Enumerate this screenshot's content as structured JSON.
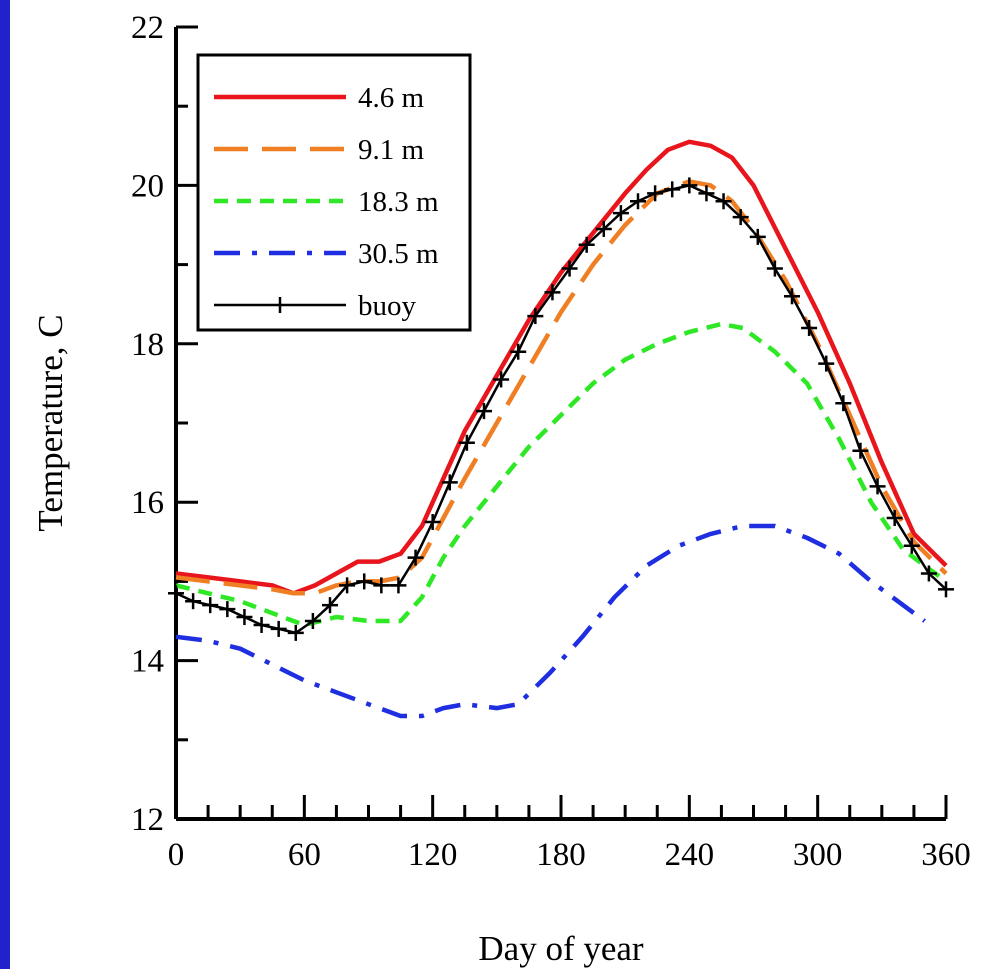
{
  "colors": {
    "background": "#2222cc",
    "plot_area": "#ffffff"
  },
  "chart_data": {
    "type": "line",
    "title": "",
    "xlabel": "Day of year",
    "ylabel": "Temperature, C",
    "xlim": [
      0,
      360
    ],
    "ylim": [
      12,
      22
    ],
    "x_ticks": [
      0,
      60,
      120,
      180,
      240,
      300,
      360
    ],
    "y_ticks": [
      12,
      14,
      16,
      18,
      20,
      22
    ],
    "grid": false,
    "legend_position": "top-left",
    "series": [
      {
        "name": "4.6 m",
        "color": "#e8151c",
        "style": "solid",
        "x": [
          0,
          15,
          30,
          45,
          55,
          65,
          75,
          85,
          95,
          105,
          115,
          125,
          135,
          150,
          165,
          180,
          195,
          210,
          220,
          230,
          240,
          250,
          260,
          270,
          285,
          300,
          315,
          330,
          345,
          360
        ],
        "y": [
          15.1,
          15.05,
          15.0,
          14.95,
          14.85,
          14.95,
          15.1,
          15.25,
          15.25,
          15.35,
          15.7,
          16.3,
          16.9,
          17.6,
          18.3,
          18.9,
          19.4,
          19.9,
          20.2,
          20.45,
          20.55,
          20.5,
          20.35,
          20.0,
          19.2,
          18.4,
          17.5,
          16.5,
          15.6,
          15.2
        ]
      },
      {
        "name": "9.1 m",
        "color": "#f07e22",
        "style": "long-dash",
        "x": [
          0,
          15,
          30,
          45,
          55,
          65,
          75,
          85,
          95,
          105,
          115,
          125,
          135,
          150,
          165,
          180,
          195,
          210,
          225,
          240,
          250,
          260,
          270,
          285,
          300,
          315,
          330,
          345,
          360
        ],
        "y": [
          15.05,
          15.0,
          14.95,
          14.9,
          14.85,
          14.85,
          14.95,
          15.0,
          15.0,
          15.05,
          15.3,
          15.8,
          16.3,
          17.0,
          17.7,
          18.4,
          19.0,
          19.5,
          19.9,
          20.05,
          20.0,
          19.8,
          19.45,
          18.8,
          18.0,
          17.1,
          16.2,
          15.5,
          15.1
        ]
      },
      {
        "name": "18.3 m",
        "color": "#2ee826",
        "style": "short-dash",
        "x": [
          0,
          15,
          30,
          45,
          60,
          75,
          90,
          105,
          115,
          125,
          135,
          150,
          165,
          180,
          195,
          210,
          225,
          240,
          255,
          265,
          280,
          295,
          310,
          325,
          340,
          360
        ],
        "y": [
          14.95,
          14.85,
          14.75,
          14.6,
          14.45,
          14.55,
          14.5,
          14.5,
          14.8,
          15.3,
          15.7,
          16.2,
          16.7,
          17.1,
          17.5,
          17.8,
          18.0,
          18.15,
          18.25,
          18.2,
          17.9,
          17.5,
          16.8,
          16.0,
          15.4,
          15.0
        ]
      },
      {
        "name": "30.5 m",
        "color": "#1e2ee0",
        "style": "dash-dot",
        "x": [
          0,
          15,
          30,
          45,
          60,
          75,
          90,
          105,
          115,
          125,
          135,
          150,
          160,
          175,
          190,
          205,
          220,
          235,
          250,
          265,
          280,
          295,
          310,
          325,
          340,
          350
        ],
        "y": [
          14.3,
          14.25,
          14.15,
          13.95,
          13.75,
          13.6,
          13.45,
          13.3,
          13.3,
          13.4,
          13.45,
          13.4,
          13.45,
          13.85,
          14.3,
          14.8,
          15.2,
          15.45,
          15.6,
          15.7,
          15.7,
          15.55,
          15.35,
          15.0,
          14.7,
          14.5
        ]
      },
      {
        "name": "buoy",
        "color": "#000000",
        "style": "solid-cross",
        "x": [
          0,
          8,
          16,
          24,
          32,
          40,
          48,
          56,
          64,
          72,
          80,
          88,
          96,
          104,
          112,
          120,
          128,
          136,
          144,
          152,
          160,
          168,
          176,
          184,
          192,
          200,
          208,
          216,
          224,
          232,
          240,
          248,
          256,
          264,
          272,
          280,
          288,
          296,
          304,
          312,
          320,
          328,
          336,
          344,
          352,
          360
        ],
        "y": [
          14.85,
          14.75,
          14.7,
          14.65,
          14.55,
          14.45,
          14.4,
          14.35,
          14.5,
          14.7,
          14.95,
          15.0,
          14.95,
          14.95,
          15.3,
          15.75,
          16.25,
          16.75,
          17.15,
          17.55,
          17.9,
          18.35,
          18.65,
          18.95,
          19.25,
          19.45,
          19.65,
          19.8,
          19.9,
          19.95,
          20.0,
          19.9,
          19.8,
          19.6,
          19.35,
          18.95,
          18.6,
          18.2,
          17.75,
          17.25,
          16.65,
          16.2,
          15.8,
          15.45,
          15.1,
          14.9
        ]
      }
    ]
  }
}
